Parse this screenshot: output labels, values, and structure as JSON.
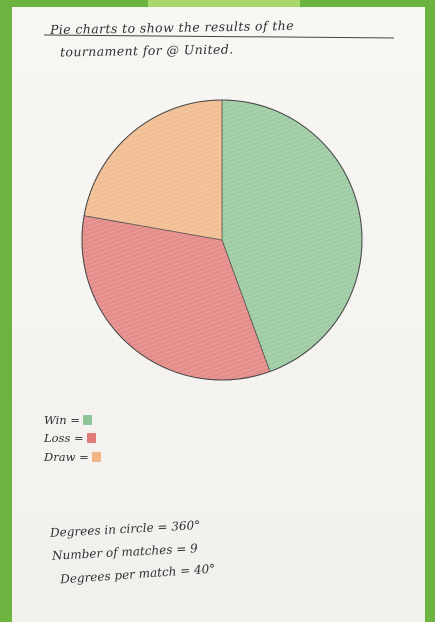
{
  "title": {
    "line1": "Pie charts to show the results of the",
    "line2": "tournament for @ United."
  },
  "legend": [
    {
      "label": "Win =",
      "color": "#8fc496"
    },
    {
      "label": "Loss =",
      "color": "#e07a78"
    },
    {
      "label": "Draw =",
      "color": "#f0b583"
    }
  ],
  "notes": {
    "degrees_in_circle": "Degrees in circle = 360°",
    "number_of_matches": "Number of matches = 9",
    "degrees_per_match": "Degrees per match = 40°"
  },
  "chart_data": {
    "type": "pie",
    "title": "Pie charts to show the results of the tournament for @ United.",
    "labels": [
      "Win",
      "Loss",
      "Draw"
    ],
    "values": [
      4,
      3,
      2
    ],
    "degrees": [
      160,
      120,
      80
    ],
    "colors": [
      "#8fc496",
      "#e07a78",
      "#f0b583"
    ],
    "total": 9,
    "legend_position": "bottom-left"
  }
}
